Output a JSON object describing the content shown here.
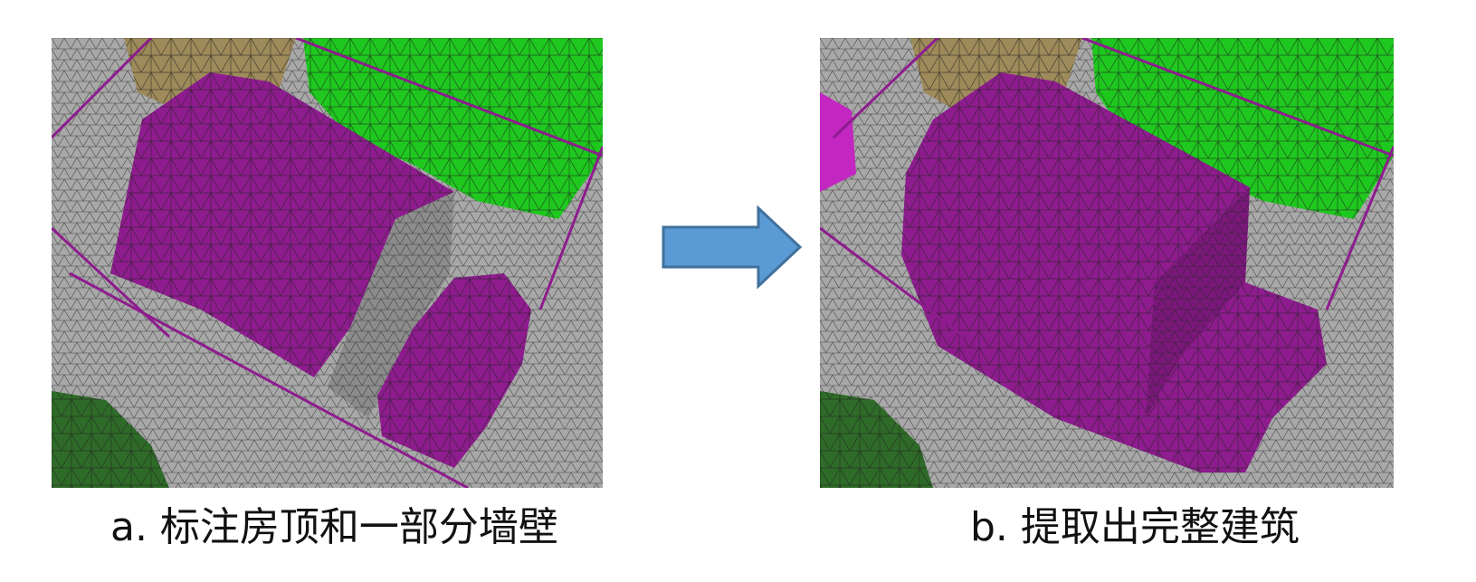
{
  "figure": {
    "panel_a": {
      "caption": "a.  标注房顶和一部分墙壁",
      "image": "3d-mesh-building-roof-and-partial-wall-annotated"
    },
    "panel_b": {
      "caption": "b.  提取出完整建筑",
      "image": "3d-mesh-complete-building-extracted"
    },
    "arrow": {
      "icon": "right-arrow-icon",
      "color": "#5b9bd5",
      "stroke": "#41719c"
    },
    "colors": {
      "building_annotation": "#8e1c8e",
      "vegetation": "#1ec81e",
      "dark_vegetation": "#2e6b28",
      "terrain": "#a6a6a6",
      "tan_object": "#9e8a5a"
    }
  }
}
